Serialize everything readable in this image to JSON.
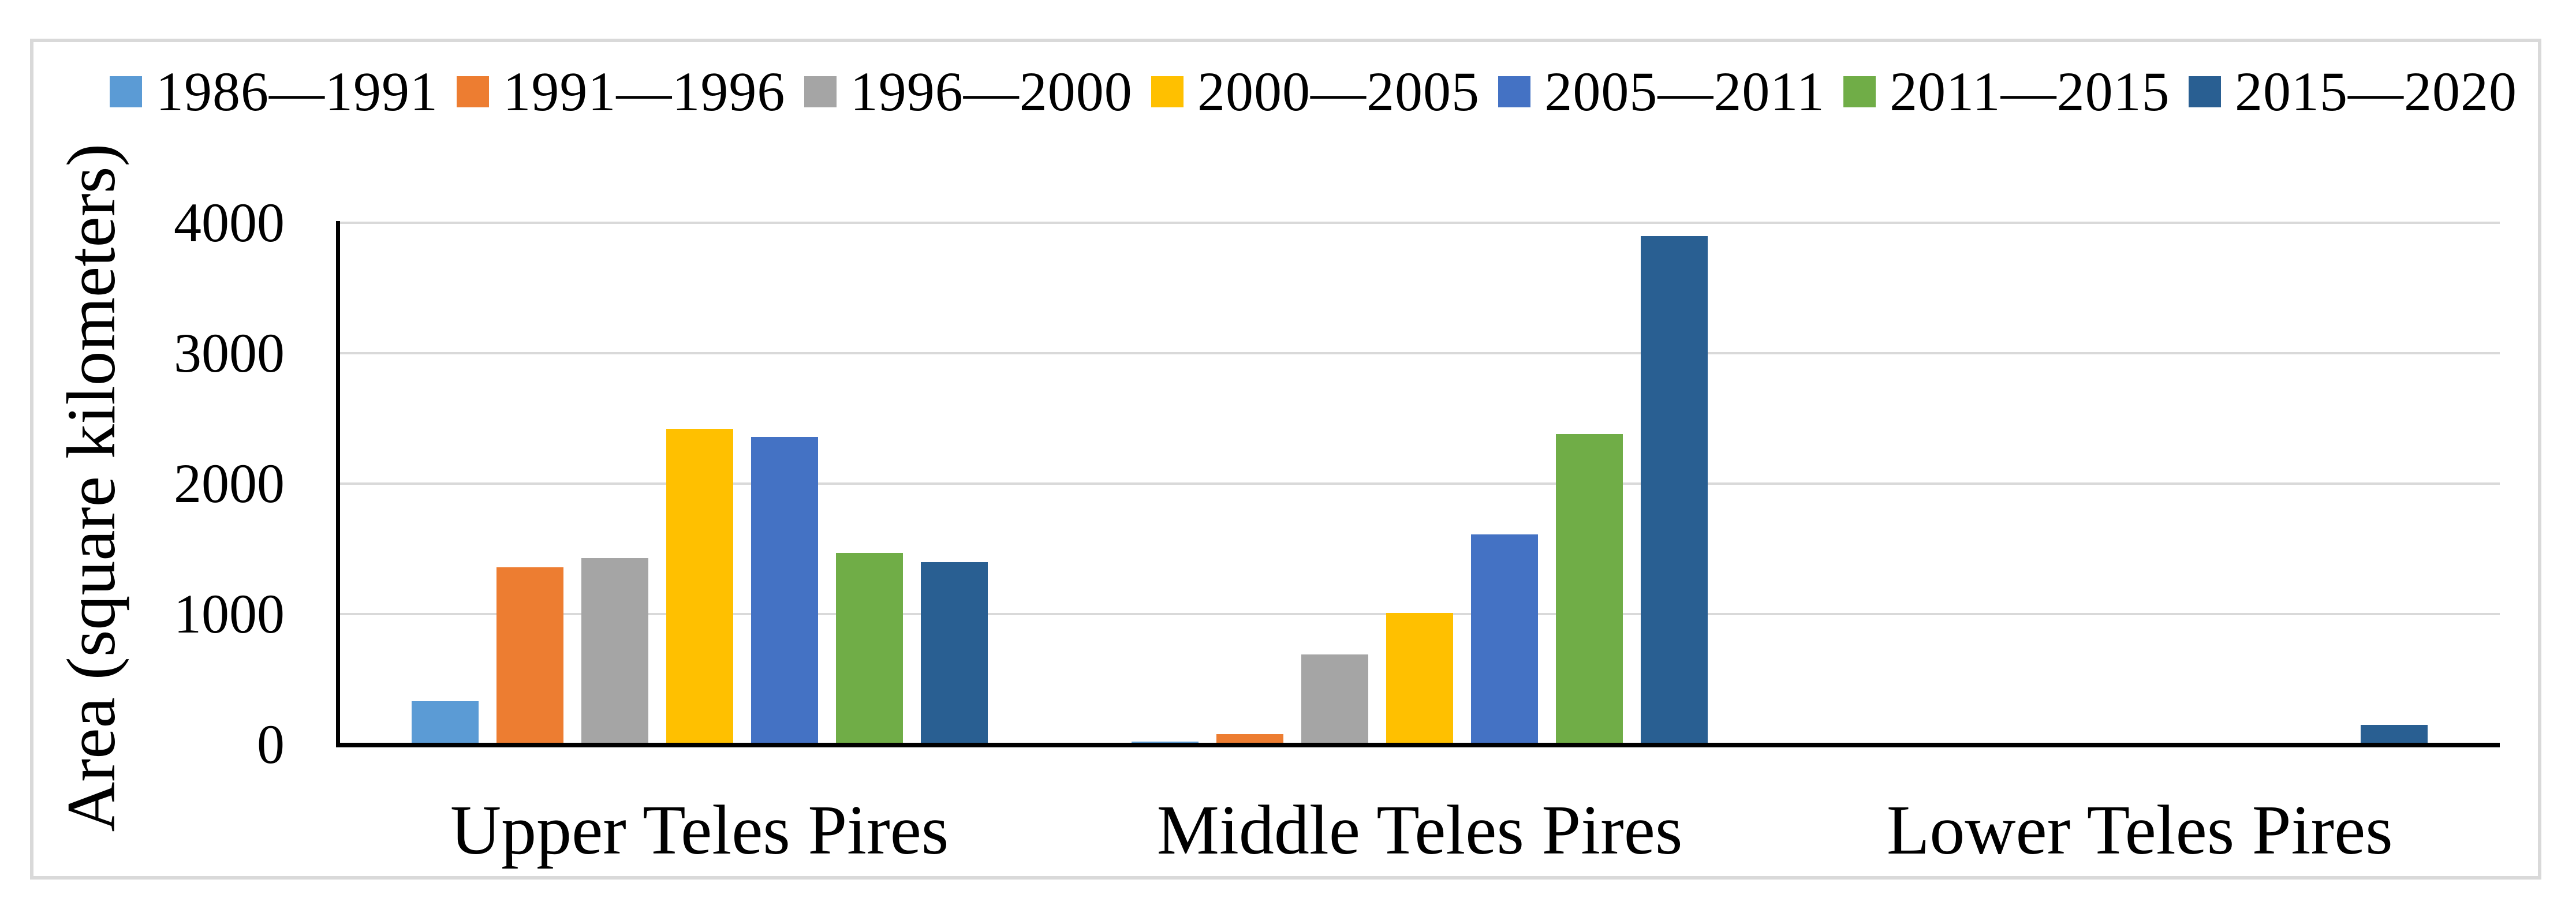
{
  "figure": {
    "background": "#FFFFFF",
    "border_color": "#D9D9D9"
  },
  "chart_data": {
    "type": "bar",
    "title": "",
    "xlabel": "",
    "ylabel": "Area (square kilometers)",
    "categories": [
      "Upper Teles Pires",
      "Middle Teles Pires",
      "Lower Teles Pires"
    ],
    "series": [
      {
        "name": "1986—1991",
        "color": "#5B9BD5",
        "values": [
          330,
          20,
          0
        ]
      },
      {
        "name": "1991—1996",
        "color": "#ED7D31",
        "values": [
          1360,
          80,
          0
        ]
      },
      {
        "name": "1996—2000",
        "color": "#A5A5A5",
        "values": [
          1430,
          690,
          0
        ]
      },
      {
        "name": "2000—2005",
        "color": "#FFC000",
        "values": [
          2420,
          1010,
          0
        ]
      },
      {
        "name": "2005—2011",
        "color": "#4472C4",
        "values": [
          2360,
          1610,
          0
        ]
      },
      {
        "name": "2011—2015",
        "color": "#70AD47",
        "values": [
          1470,
          2380,
          0
        ]
      },
      {
        "name": "2015—2020",
        "color": "#295F92",
        "values": [
          1400,
          3900,
          150
        ]
      }
    ],
    "ylim": [
      0,
      4000
    ],
    "yticks": [
      0,
      1000,
      2000,
      3000,
      4000
    ],
    "grid": "horizontal",
    "gridline_color": "#D9D9D9",
    "axis_color": "#000000",
    "legend_position": "top"
  }
}
